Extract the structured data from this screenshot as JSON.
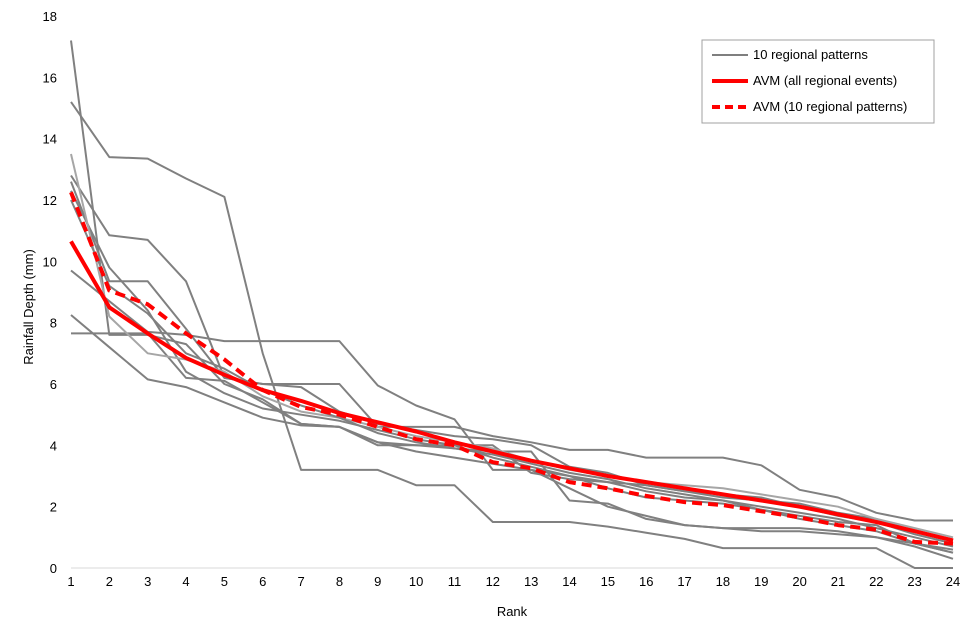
{
  "chart_data": {
    "type": "line",
    "title": "",
    "xlabel": "Rank",
    "ylabel": "Rainfall Depth (mm)",
    "xlim": [
      1,
      24
    ],
    "ylim": [
      0,
      18
    ],
    "yticks": [
      0,
      2,
      4,
      6,
      8,
      10,
      12,
      14,
      16,
      18
    ],
    "x": [
      1,
      2,
      3,
      4,
      5,
      6,
      7,
      8,
      9,
      10,
      11,
      12,
      13,
      14,
      15,
      16,
      17,
      18,
      19,
      20,
      21,
      22,
      23,
      24
    ],
    "grid": false,
    "legend_position": "top-right",
    "legend": [
      {
        "label": "10 regional patterns",
        "color": "#7f7f7f",
        "style": "solid"
      },
      {
        "label": "AVM (all regional events)",
        "color": "#ff0000",
        "style": "solid"
      },
      {
        "label": "AVM (10 regional patterns)",
        "color": "#ff0000",
        "style": "dashed"
      }
    ],
    "series": [
      {
        "group": "pattern",
        "color": "#808080",
        "values": [
          17.2,
          7.6,
          7.6,
          7.3,
          6.0,
          5.5,
          4.7,
          4.6,
          4.1,
          4.0,
          4.0,
          4.0,
          3.1,
          2.9,
          2.8,
          2.5,
          2.3,
          2.2,
          1.9,
          1.7,
          1.5,
          1.4,
          0.8,
          0.5
        ]
      },
      {
        "group": "pattern",
        "color": "#808080",
        "values": [
          15.2,
          13.4,
          13.35,
          12.7,
          12.1,
          7.0,
          3.2,
          3.2,
          3.2,
          2.7,
          2.7,
          1.5,
          1.5,
          1.5,
          1.35,
          1.15,
          0.95,
          0.65,
          0.65,
          0.65,
          0.65,
          0.65,
          0.0,
          0.0
        ]
      },
      {
        "group": "pattern",
        "color": "#808080",
        "values": [
          12.8,
          10.85,
          10.7,
          9.35,
          6.2,
          6.0,
          6.0,
          6.0,
          4.6,
          4.6,
          4.6,
          4.3,
          4.1,
          3.85,
          3.85,
          3.6,
          3.6,
          3.6,
          3.35,
          2.55,
          2.3,
          1.8,
          1.55,
          1.55
        ]
      },
      {
        "group": "pattern",
        "color": "#808080",
        "values": [
          12.6,
          9.35,
          9.35,
          7.8,
          6.2,
          6.0,
          5.9,
          5.1,
          4.7,
          4.5,
          4.3,
          4.2,
          4.0,
          3.3,
          3.1,
          2.7,
          2.5,
          2.3,
          2.2,
          2.1,
          1.8,
          1.6,
          1.2,
          0.9
        ]
      },
      {
        "group": "pattern",
        "color": "#808080",
        "values": [
          9.7,
          8.7,
          7.7,
          7.6,
          7.4,
          7.4,
          7.4,
          7.4,
          5.95,
          5.3,
          4.85,
          3.2,
          3.2,
          3.0,
          2.6,
          2.3,
          2.2,
          2.1,
          1.9,
          1.6,
          1.4,
          1.2,
          0.8,
          0.5
        ]
      },
      {
        "group": "pattern",
        "color": "#808080",
        "values": [
          8.25,
          7.2,
          6.15,
          5.9,
          5.4,
          4.9,
          4.65,
          4.6,
          4.1,
          3.8,
          3.6,
          3.4,
          3.2,
          2.6,
          2.0,
          1.7,
          1.4,
          1.3,
          1.3,
          1.3,
          1.2,
          1.0,
          0.8,
          0.6
        ]
      },
      {
        "group": "pattern",
        "color": "#808080",
        "values": [
          7.65,
          7.65,
          7.65,
          6.2,
          6.1,
          5.4,
          4.7,
          4.6,
          4.0,
          4.0,
          3.9,
          3.8,
          3.8,
          2.2,
          2.1,
          1.6,
          1.4,
          1.3,
          1.2,
          1.2,
          1.1,
          1.0,
          0.7,
          0.3
        ]
      },
      {
        "group": "pattern",
        "color": "#808080",
        "values": [
          12.3,
          9.8,
          8.4,
          6.4,
          5.7,
          5.2,
          5.0,
          4.8,
          4.5,
          4.2,
          4.0,
          3.6,
          3.3,
          3.0,
          2.8,
          2.7,
          2.5,
          2.4,
          2.3,
          2.0,
          1.7,
          1.5,
          1.1,
          0.8
        ]
      },
      {
        "group": "pattern",
        "color": "#a6a6a6",
        "values": [
          13.5,
          8.2,
          7.0,
          6.8,
          6.4,
          5.6,
          5.1,
          4.9,
          4.6,
          4.3,
          4.1,
          3.9,
          3.5,
          3.2,
          3.0,
          2.8,
          2.7,
          2.6,
          2.4,
          2.2,
          2.0,
          1.6,
          1.3,
          1.0
        ]
      },
      {
        "group": "pattern",
        "color": "#808080",
        "values": [
          12.0,
          9.2,
          8.3,
          7.0,
          6.5,
          5.8,
          5.3,
          4.9,
          4.4,
          4.1,
          3.9,
          3.7,
          3.4,
          3.1,
          2.9,
          2.6,
          2.4,
          2.2,
          2.0,
          1.8,
          1.6,
          1.3,
          1.0,
          0.7
        ]
      },
      {
        "group": "avm_all",
        "name": "AVM (all regional events)",
        "color": "#ff0000",
        "values": [
          10.65,
          8.5,
          7.65,
          6.85,
          6.3,
          5.8,
          5.45,
          5.05,
          4.75,
          4.45,
          4.1,
          3.8,
          3.5,
          3.25,
          3.0,
          2.8,
          2.6,
          2.4,
          2.2,
          2.0,
          1.75,
          1.5,
          1.2,
          0.9
        ]
      },
      {
        "group": "avm_10",
        "name": "AVM (10 regional patterns)",
        "color": "#ff0000",
        "values": [
          12.25,
          9.05,
          8.6,
          7.65,
          6.8,
          5.8,
          5.25,
          5.0,
          4.6,
          4.2,
          4.0,
          3.45,
          3.25,
          2.8,
          2.6,
          2.35,
          2.15,
          2.05,
          1.85,
          1.65,
          1.4,
          1.25,
          0.85,
          0.8
        ]
      }
    ]
  }
}
